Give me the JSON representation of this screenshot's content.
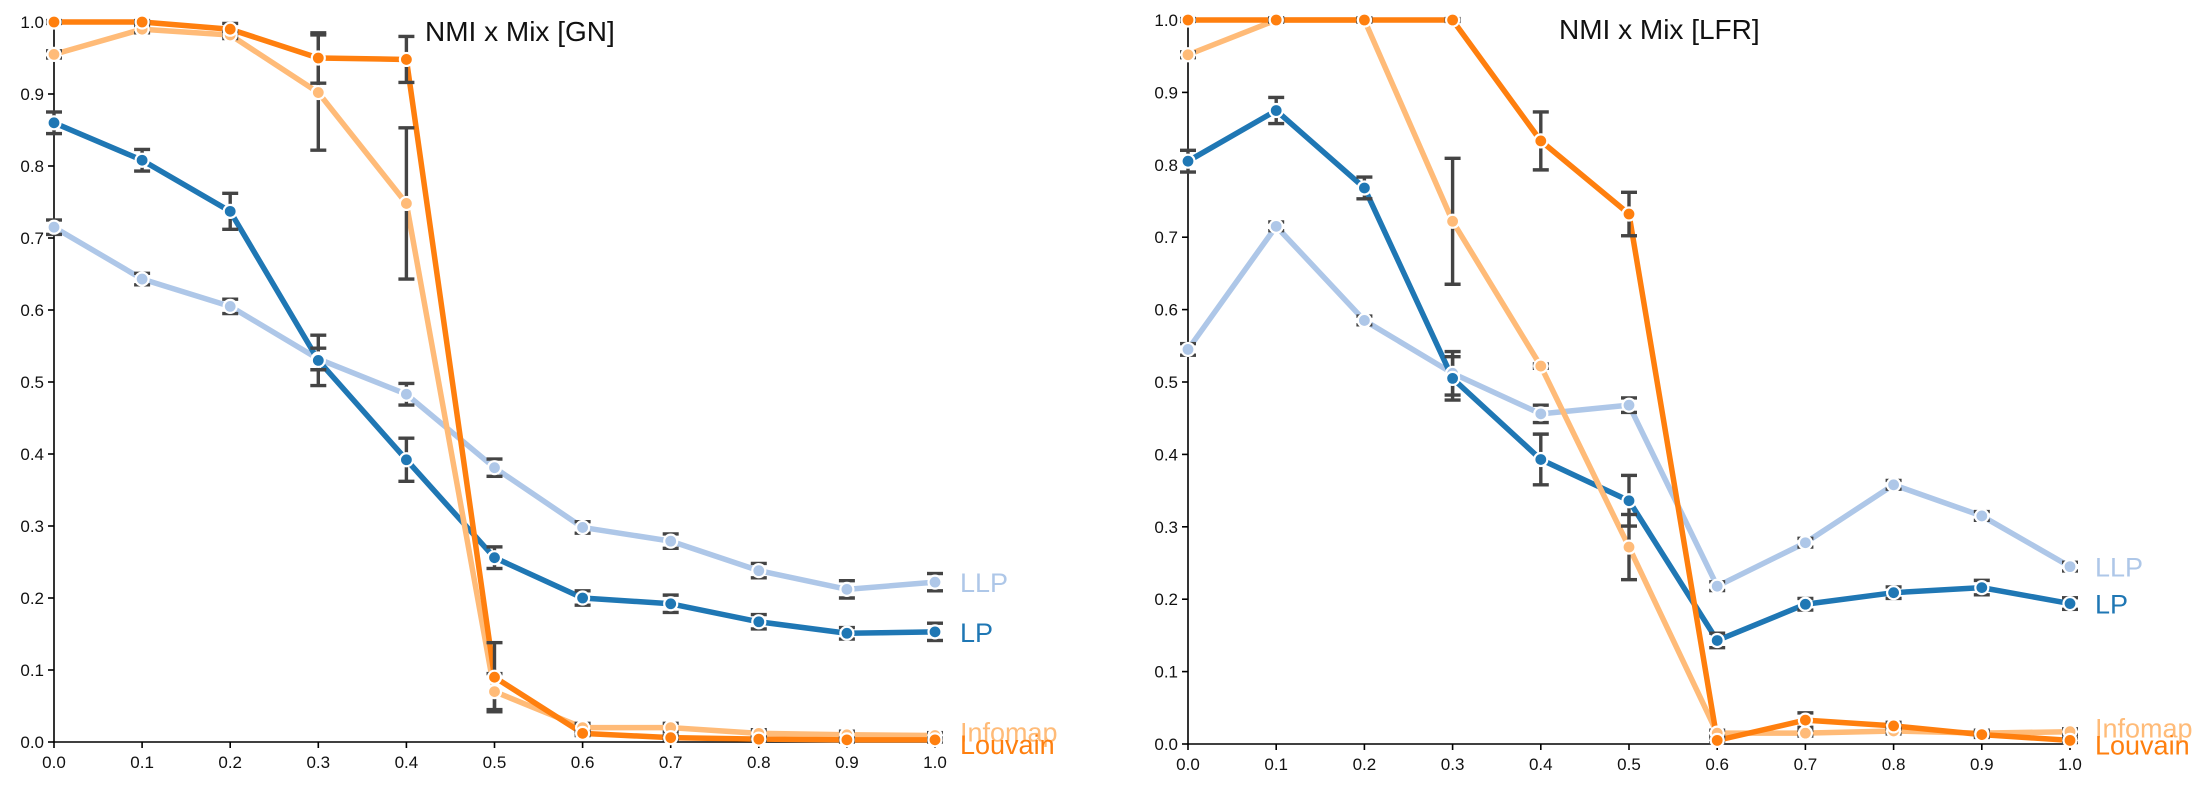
{
  "chart_data": [
    {
      "type": "line",
      "title": "NMI x Mix [GN]",
      "xlabel": "",
      "ylabel": "",
      "xlim": [
        0,
        1
      ],
      "ylim": [
        0,
        1
      ],
      "x": [
        0.0,
        0.1,
        0.2,
        0.3,
        0.4,
        0.5,
        0.6,
        0.7,
        0.8,
        0.9,
        1.0
      ],
      "x_ticks": [
        "0.0",
        "0.1",
        "0.2",
        "0.3",
        "0.4",
        "0.5",
        "0.6",
        "0.7",
        "0.8",
        "0.9",
        "1.0"
      ],
      "y_ticks": [
        "0.0",
        "0.1",
        "0.2",
        "0.3",
        "0.4",
        "0.5",
        "0.6",
        "0.7",
        "0.8",
        "0.9",
        "1.0"
      ],
      "series": [
        {
          "name": "LLP",
          "color": "#aec7e8",
          "values": [
            0.715,
            0.643,
            0.605,
            0.532,
            0.483,
            0.381,
            0.298,
            0.279,
            0.238,
            0.212,
            0.222
          ],
          "error": [
            0.01,
            0.008,
            0.01,
            0.015,
            0.015,
            0.012,
            0.008,
            0.01,
            0.01,
            0.012,
            0.012
          ]
        },
        {
          "name": "LP",
          "color": "#1f77b4",
          "values": [
            0.86,
            0.808,
            0.737,
            0.53,
            0.392,
            0.256,
            0.2,
            0.192,
            0.167,
            0.151,
            0.153
          ],
          "error": [
            0.015,
            0.015,
            0.025,
            0.035,
            0.03,
            0.015,
            0.01,
            0.012,
            0.01,
            0.008,
            0.012
          ]
        },
        {
          "name": "Infomap",
          "color": "#ffbb78",
          "values": [
            0.955,
            0.99,
            0.982,
            0.902,
            0.748,
            0.07,
            0.02,
            0.02,
            0.012,
            0.01,
            0.009
          ],
          "error": [
            0.005,
            0.005,
            0.005,
            0.08,
            0.105,
            0.025,
            0.006,
            0.006,
            0.005,
            0.005,
            0.004
          ]
        },
        {
          "name": "Louvain",
          "color": "#ff7f0e",
          "values": [
            1.0,
            1.0,
            0.99,
            0.95,
            0.948,
            0.09,
            0.012,
            0.006,
            0.004,
            0.003,
            0.003
          ],
          "error": [
            0.002,
            0.002,
            0.008,
            0.035,
            0.032,
            0.048,
            0.003,
            0.003,
            0.003,
            0.003,
            0.003
          ]
        }
      ]
    },
    {
      "type": "line",
      "title": "NMI x Mix [LFR]",
      "xlabel": "",
      "ylabel": "",
      "xlim": [
        0,
        1
      ],
      "ylim": [
        0,
        1
      ],
      "x": [
        0.0,
        0.1,
        0.2,
        0.3,
        0.4,
        0.5,
        0.6,
        0.7,
        0.8,
        0.9,
        1.0
      ],
      "x_ticks": [
        "0.0",
        "0.1",
        "0.2",
        "0.3",
        "0.4",
        "0.5",
        "0.6",
        "0.7",
        "0.8",
        "0.9",
        "1.0"
      ],
      "y_ticks": [
        "0.0",
        "0.1",
        "0.2",
        "0.3",
        "0.4",
        "0.5",
        "0.6",
        "0.7",
        "0.8",
        "0.9",
        "1.0"
      ],
      "series": [
        {
          "name": "LLP",
          "color": "#aec7e8",
          "values": [
            0.545,
            0.715,
            0.585,
            0.512,
            0.456,
            0.468,
            0.218,
            0.278,
            0.358,
            0.315,
            0.245
          ],
          "error": [
            0.008,
            0.006,
            0.006,
            0.03,
            0.012,
            0.01,
            0.006,
            0.006,
            0.006,
            0.006,
            0.006
          ]
        },
        {
          "name": "LP",
          "color": "#1f77b4",
          "values": [
            0.805,
            0.875,
            0.768,
            0.505,
            0.393,
            0.336,
            0.143,
            0.193,
            0.209,
            0.216,
            0.194
          ],
          "error": [
            0.015,
            0.018,
            0.015,
            0.03,
            0.035,
            0.035,
            0.01,
            0.008,
            0.008,
            0.01,
            0.008
          ]
        },
        {
          "name": "Infomap",
          "color": "#ffbb78",
          "values": [
            0.952,
            1.0,
            1.0,
            0.722,
            0.522,
            0.272,
            0.015,
            0.015,
            0.018,
            0.015,
            0.017
          ],
          "error": [
            0.004,
            0.003,
            0.003,
            0.087,
            0.003,
            0.045,
            0.004,
            0.004,
            0.004,
            0.004,
            0.004
          ]
        },
        {
          "name": "Louvain",
          "color": "#ff7f0e",
          "values": [
            1.0,
            1.0,
            1.0,
            1.0,
            0.833,
            0.732,
            0.005,
            0.033,
            0.025,
            0.013,
            0.005
          ],
          "error": [
            0.002,
            0.002,
            0.002,
            0.002,
            0.04,
            0.03,
            0.003,
            0.01,
            0.005,
            0.004,
            0.003
          ]
        }
      ]
    }
  ]
}
